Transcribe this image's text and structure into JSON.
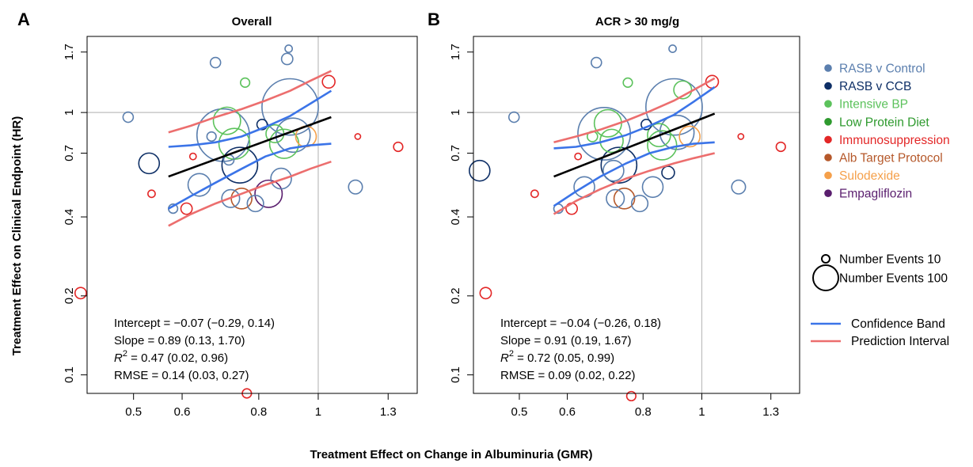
{
  "y_axis_label": "Treatment Effect on Clinical Endpoint  (HR)",
  "x_axis_label": "Treatment Effect on Change in Albuminuria (GMR)",
  "colors": {
    "confidence_band": "#3b74e8",
    "prediction_interval": "#ec6e6e",
    "fit_line": "#000000",
    "reference_line": "#bdbdbd",
    "axis": "#000000"
  },
  "legend": {
    "groups": [
      {
        "label": "RASB v Control",
        "color": "#5b7fae"
      },
      {
        "label": "RASB v CCB",
        "color": "#0e2f66"
      },
      {
        "label": "Intensive BP",
        "color": "#5cc25c"
      },
      {
        "label": "Low Protein Diet",
        "color": "#2e9a2e"
      },
      {
        "label": "Immunosuppression",
        "color": "#e32727"
      },
      {
        "label": "Alb Target Protocol",
        "color": "#b5582a"
      },
      {
        "label": "Sulodexide",
        "color": "#f5a04a"
      },
      {
        "label": "Empagliflozin",
        "color": "#5a1e6e"
      }
    ],
    "sizes": [
      {
        "label": "Number Events 10",
        "events": 10
      },
      {
        "label": "Number Events 100",
        "events": 100
      }
    ],
    "lines": [
      {
        "label": "Confidence Band",
        "color": "#3b74e8"
      },
      {
        "label": "Prediction Interval",
        "color": "#ec6e6e"
      }
    ]
  },
  "chart_data": [
    {
      "panel_label": "A",
      "title": "Overall",
      "type": "scatter",
      "x_scale": "log",
      "y_scale": "log",
      "xlim": [
        0.42,
        1.45
      ],
      "ylim": [
        0.085,
        1.95
      ],
      "x_ticks": [
        0.5,
        0.6,
        0.8,
        1,
        1.3
      ],
      "y_ticks": [
        0.1,
        0.2,
        0.4,
        0.7,
        1,
        1.7
      ],
      "x_tick_labels": [
        "0.5",
        "0.6",
        "0.8",
        "1",
        "1.3"
      ],
      "y_tick_labels": [
        "0.1",
        "0.2",
        "0.4",
        "0.7",
        "1",
        "1.7"
      ],
      "reference_x": 1,
      "reference_y": 1,
      "fit": {
        "x_range": [
          0.57,
          1.05
        ],
        "y_start": 0.57,
        "y_end": 0.96
      },
      "confidence_band": {
        "lower": [
          [
            0.57,
            0.43
          ],
          [
            0.62,
            0.48
          ],
          [
            0.68,
            0.54
          ],
          [
            0.75,
            0.61
          ],
          [
            0.82,
            0.68
          ],
          [
            0.9,
            0.73
          ],
          [
            0.97,
            0.75
          ],
          [
            1.05,
            0.76
          ]
        ],
        "upper": [
          [
            0.57,
            0.74
          ],
          [
            0.62,
            0.75
          ],
          [
            0.68,
            0.77
          ],
          [
            0.75,
            0.81
          ],
          [
            0.82,
            0.88
          ],
          [
            0.9,
            0.97
          ],
          [
            0.97,
            1.08
          ],
          [
            1.05,
            1.21
          ]
        ]
      },
      "prediction_interval": {
        "lower": [
          [
            0.57,
            0.37
          ],
          [
            0.62,
            0.41
          ],
          [
            0.68,
            0.45
          ],
          [
            0.75,
            0.49
          ],
          [
            0.82,
            0.53
          ],
          [
            0.9,
            0.57
          ],
          [
            0.97,
            0.61
          ],
          [
            1.05,
            0.65
          ]
        ],
        "upper": [
          [
            0.57,
            0.84
          ],
          [
            0.62,
            0.89
          ],
          [
            0.68,
            0.96
          ],
          [
            0.75,
            1.03
          ],
          [
            0.82,
            1.11
          ],
          [
            0.9,
            1.21
          ],
          [
            0.97,
            1.32
          ],
          [
            1.05,
            1.44
          ]
        ]
      },
      "stats": [
        {
          "prefix": "Intercept = −0.07 (−0.29, 0.14)"
        },
        {
          "prefix": "Slope = 0.89 (0.13, 1.70)"
        },
        {
          "prefix": "R",
          "sup": "2",
          "suffix": " = 0.47 (0.02, 0.96)"
        },
        {
          "prefix": "RMSE = 0.14 (0.03, 0.27)"
        }
      ],
      "points": [
        {
          "x": 0.41,
          "y": 0.205,
          "group": "Immunosuppression",
          "events": 12
        },
        {
          "x": 0.49,
          "y": 0.96,
          "group": "RASB v Control",
          "events": 10
        },
        {
          "x": 0.53,
          "y": 0.64,
          "group": "RASB v CCB",
          "events": 40
        },
        {
          "x": 0.535,
          "y": 0.49,
          "group": "Immunosuppression",
          "events": 5
        },
        {
          "x": 0.58,
          "y": 0.43,
          "group": "RASB v Control",
          "events": 8
        },
        {
          "x": 0.61,
          "y": 0.43,
          "group": "Immunosuppression",
          "events": 12
        },
        {
          "x": 0.625,
          "y": 0.68,
          "group": "Immunosuppression",
          "events": 4
        },
        {
          "x": 0.64,
          "y": 0.53,
          "group": "RASB v Control",
          "events": 48
        },
        {
          "x": 0.67,
          "y": 0.81,
          "group": "RASB v Control",
          "events": 8
        },
        {
          "x": 0.68,
          "y": 1.55,
          "group": "RASB v Control",
          "events": 10
        },
        {
          "x": 0.7,
          "y": 0.82,
          "group": "RASB v Control",
          "events": 260
        },
        {
          "x": 0.71,
          "y": 0.93,
          "group": "Intensive BP",
          "events": 70
        },
        {
          "x": 0.72,
          "y": 0.47,
          "group": "RASB v Control",
          "events": 30
        },
        {
          "x": 0.715,
          "y": 0.66,
          "group": "RASB v Control",
          "events": 10
        },
        {
          "x": 0.73,
          "y": 0.76,
          "group": "Intensive BP",
          "events": 90
        },
        {
          "x": 0.745,
          "y": 0.63,
          "group": "RASB v CCB",
          "events": 120
        },
        {
          "x": 0.75,
          "y": 0.47,
          "group": "Alb Target Protocol",
          "events": 40
        },
        {
          "x": 0.76,
          "y": 1.3,
          "group": "Intensive BP",
          "events": 8
        },
        {
          "x": 0.765,
          "y": 0.085,
          "group": "Immunosuppression",
          "events": 8
        },
        {
          "x": 0.79,
          "y": 0.45,
          "group": "RASB v Control",
          "events": 25
        },
        {
          "x": 0.81,
          "y": 0.9,
          "group": "RASB v CCB",
          "events": 10
        },
        {
          "x": 0.83,
          "y": 0.49,
          "group": "Empagliflozin",
          "events": 70
        },
        {
          "x": 0.85,
          "y": 0.83,
          "group": "Intensive BP",
          "events": 30
        },
        {
          "x": 0.87,
          "y": 0.56,
          "group": "RASB v Control",
          "events": 40
        },
        {
          "x": 0.88,
          "y": 0.76,
          "group": "Intensive BP",
          "events": 80
        },
        {
          "x": 0.89,
          "y": 1.6,
          "group": "RASB v Control",
          "events": 12
        },
        {
          "x": 0.895,
          "y": 1.75,
          "group": "RASB v Control",
          "events": 5
        },
        {
          "x": 0.9,
          "y": 1.05,
          "group": "RASB v Control",
          "events": 300
        },
        {
          "x": 0.91,
          "y": 0.82,
          "group": "RASB v Control",
          "events": 110
        },
        {
          "x": 0.955,
          "y": 0.81,
          "group": "Sulodexide",
          "events": 40
        },
        {
          "x": 1.04,
          "y": 1.31,
          "group": "Immunosuppression",
          "events": 15
        },
        {
          "x": 1.15,
          "y": 0.52,
          "group": "RASB v Control",
          "events": 18
        },
        {
          "x": 1.16,
          "y": 0.81,
          "group": "Immunosuppression",
          "events": 3
        },
        {
          "x": 1.35,
          "y": 0.74,
          "group": "Immunosuppression",
          "events": 8
        }
      ]
    },
    {
      "panel_label": "B",
      "title": "ACR > 30 mg/g",
      "type": "scatter",
      "x_scale": "log",
      "y_scale": "log",
      "xlim": [
        0.42,
        1.45
      ],
      "ylim": [
        0.085,
        1.95
      ],
      "x_ticks": [
        0.5,
        0.6,
        0.8,
        1,
        1.3
      ],
      "y_ticks": [
        0.1,
        0.2,
        0.4,
        0.7,
        1,
        1.7
      ],
      "x_tick_labels": [
        "0.5",
        "0.6",
        "0.8",
        "1",
        "1.3"
      ],
      "y_tick_labels": [
        "0.1",
        "0.2",
        "0.4",
        "0.7",
        "1",
        "1.7"
      ],
      "reference_x": 1,
      "reference_y": 1,
      "fit": {
        "x_range": [
          0.57,
          1.05
        ],
        "y_start": 0.57,
        "y_end": 0.99
      },
      "confidence_band": {
        "lower": [
          [
            0.57,
            0.44
          ],
          [
            0.62,
            0.5
          ],
          [
            0.68,
            0.57
          ],
          [
            0.75,
            0.64
          ],
          [
            0.82,
            0.7
          ],
          [
            0.9,
            0.74
          ],
          [
            0.97,
            0.76
          ],
          [
            1.05,
            0.77
          ]
        ],
        "upper": [
          [
            0.57,
            0.73
          ],
          [
            0.62,
            0.74
          ],
          [
            0.68,
            0.77
          ],
          [
            0.75,
            0.82
          ],
          [
            0.82,
            0.89
          ],
          [
            0.9,
            0.98
          ],
          [
            0.97,
            1.1
          ],
          [
            1.05,
            1.25
          ]
        ]
      },
      "prediction_interval": {
        "lower": [
          [
            0.57,
            0.41
          ],
          [
            0.62,
            0.46
          ],
          [
            0.68,
            0.51
          ],
          [
            0.75,
            0.56
          ],
          [
            0.82,
            0.6
          ],
          [
            0.9,
            0.64
          ],
          [
            0.97,
            0.67
          ],
          [
            1.05,
            0.7
          ]
        ],
        "upper": [
          [
            0.57,
            0.77
          ],
          [
            0.62,
            0.81
          ],
          [
            0.68,
            0.86
          ],
          [
            0.75,
            0.93
          ],
          [
            0.82,
            1.01
          ],
          [
            0.9,
            1.11
          ],
          [
            0.97,
            1.22
          ],
          [
            1.05,
            1.35
          ]
        ]
      },
      "stats": [
        {
          "prefix": "Intercept = −0.04 (−0.26, 0.18)"
        },
        {
          "prefix": "Slope = 0.91 (0.19, 1.67)"
        },
        {
          "prefix": "R",
          "sup": "2",
          "suffix": " = 0.72 (0.05, 0.99)"
        },
        {
          "prefix": "RMSE = 0.09 (0.02, 0.22)"
        }
      ],
      "points": [
        {
          "x": 0.43,
          "y": 0.6,
          "group": "RASB v CCB",
          "events": 40
        },
        {
          "x": 0.44,
          "y": 0.205,
          "group": "Immunosuppression",
          "events": 12
        },
        {
          "x": 0.49,
          "y": 0.96,
          "group": "RASB v Control",
          "events": 10
        },
        {
          "x": 0.53,
          "y": 0.49,
          "group": "Immunosuppression",
          "events": 5
        },
        {
          "x": 0.58,
          "y": 0.43,
          "group": "RASB v Control",
          "events": 8
        },
        {
          "x": 0.61,
          "y": 0.43,
          "group": "Immunosuppression",
          "events": 12
        },
        {
          "x": 0.625,
          "y": 0.68,
          "group": "Immunosuppression",
          "events": 4
        },
        {
          "x": 0.64,
          "y": 0.52,
          "group": "RASB v Control",
          "events": 40
        },
        {
          "x": 0.66,
          "y": 0.81,
          "group": "Intensive BP",
          "events": 10
        },
        {
          "x": 0.67,
          "y": 1.55,
          "group": "RASB v Control",
          "events": 10
        },
        {
          "x": 0.69,
          "y": 0.83,
          "group": "RASB v Control",
          "events": 260
        },
        {
          "x": 0.7,
          "y": 0.91,
          "group": "Intensive BP",
          "events": 70
        },
        {
          "x": 0.71,
          "y": 0.78,
          "group": "Intensive BP",
          "events": 50
        },
        {
          "x": 0.715,
          "y": 0.6,
          "group": "RASB v Control",
          "events": 40
        },
        {
          "x": 0.72,
          "y": 0.47,
          "group": "RASB v Control",
          "events": 30
        },
        {
          "x": 0.73,
          "y": 0.63,
          "group": "RASB v CCB",
          "events": 120
        },
        {
          "x": 0.745,
          "y": 0.47,
          "group": "Alb Target Protocol",
          "events": 40
        },
        {
          "x": 0.755,
          "y": 1.3,
          "group": "Intensive BP",
          "events": 8
        },
        {
          "x": 0.765,
          "y": 0.083,
          "group": "Immunosuppression",
          "events": 8
        },
        {
          "x": 0.79,
          "y": 0.45,
          "group": "RASB v Control",
          "events": 25
        },
        {
          "x": 0.81,
          "y": 0.9,
          "group": "RASB v CCB",
          "events": 10
        },
        {
          "x": 0.83,
          "y": 0.52,
          "group": "RASB v Control",
          "events": 40
        },
        {
          "x": 0.85,
          "y": 0.82,
          "group": "Intensive BP",
          "events": 50
        },
        {
          "x": 0.86,
          "y": 0.75,
          "group": "Intensive BP",
          "events": 80
        },
        {
          "x": 0.88,
          "y": 0.59,
          "group": "RASB v CCB",
          "events": 15
        },
        {
          "x": 0.895,
          "y": 1.75,
          "group": "RASB v Control",
          "events": 5
        },
        {
          "x": 0.9,
          "y": 1.05,
          "group": "RASB v Control",
          "events": 300
        },
        {
          "x": 0.91,
          "y": 0.84,
          "group": "RASB v Control",
          "events": 110
        },
        {
          "x": 0.93,
          "y": 1.22,
          "group": "Intensive BP",
          "events": 30
        },
        {
          "x": 0.955,
          "y": 0.81,
          "group": "Sulodexide",
          "events": 40
        },
        {
          "x": 1.04,
          "y": 1.31,
          "group": "Immunosuppression",
          "events": 15
        },
        {
          "x": 1.15,
          "y": 0.52,
          "group": "RASB v Control",
          "events": 18
        },
        {
          "x": 1.16,
          "y": 0.81,
          "group": "Immunosuppression",
          "events": 3
        },
        {
          "x": 1.35,
          "y": 0.74,
          "group": "Immunosuppression",
          "events": 8
        }
      ]
    }
  ]
}
